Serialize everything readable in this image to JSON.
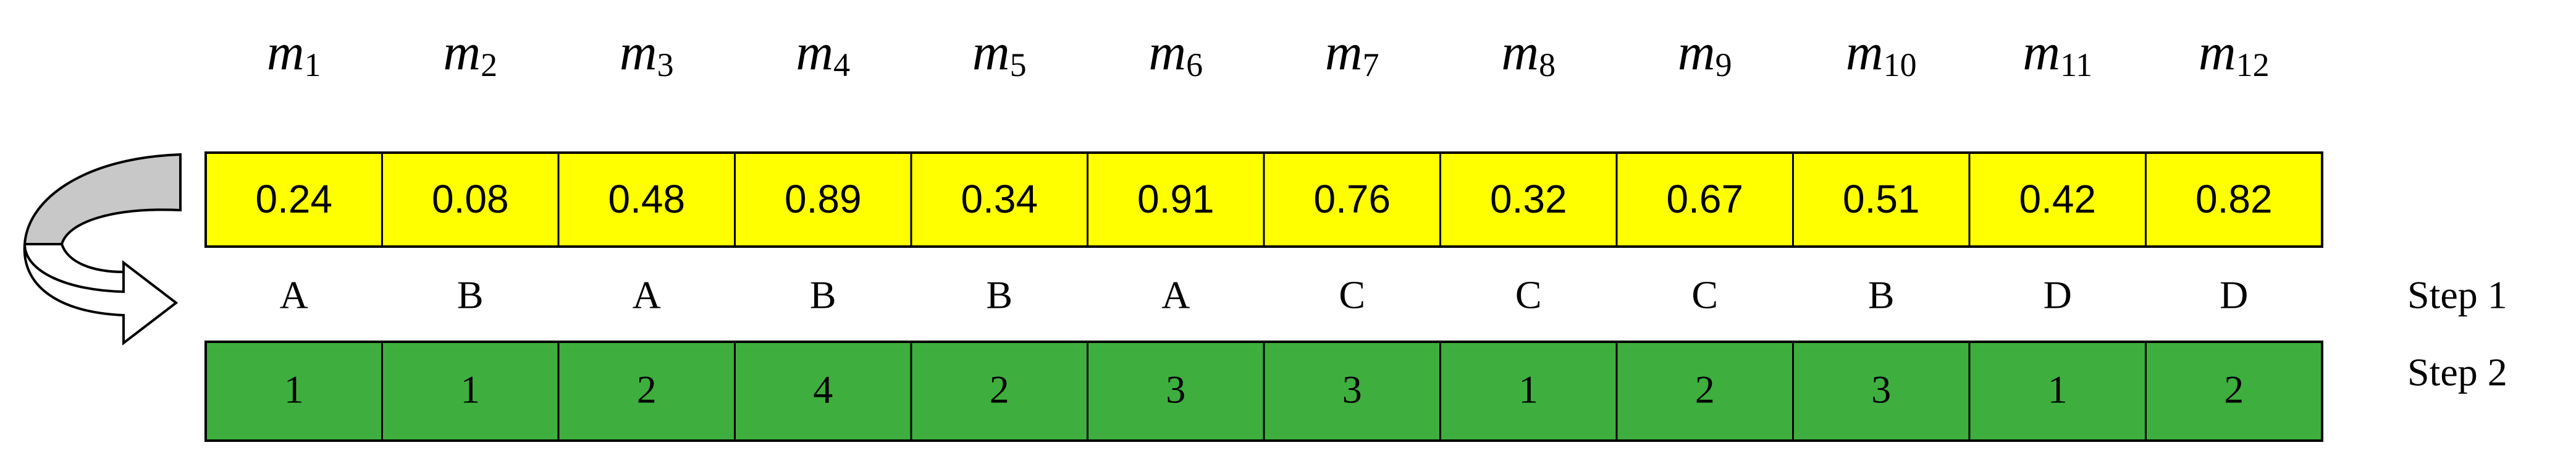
{
  "columns": [
    {
      "symbol": "m",
      "index": "1",
      "value": "0.24",
      "step1": "A",
      "step2": "1"
    },
    {
      "symbol": "m",
      "index": "2",
      "value": "0.08",
      "step1": "B",
      "step2": "1"
    },
    {
      "symbol": "m",
      "index": "3",
      "value": "0.48",
      "step1": "A",
      "step2": "2"
    },
    {
      "symbol": "m",
      "index": "4",
      "value": "0.89",
      "step1": "B",
      "step2": "4"
    },
    {
      "symbol": "m",
      "index": "5",
      "value": "0.34",
      "step1": "B",
      "step2": "2"
    },
    {
      "symbol": "m",
      "index": "6",
      "value": "0.91",
      "step1": "A",
      "step2": "3"
    },
    {
      "symbol": "m",
      "index": "7",
      "value": "0.76",
      "step1": "C",
      "step2": "3"
    },
    {
      "symbol": "m",
      "index": "8",
      "value": "0.32",
      "step1": "C",
      "step2": "1"
    },
    {
      "symbol": "m",
      "index": "9",
      "value": "0.67",
      "step1": "C",
      "step2": "2"
    },
    {
      "symbol": "m",
      "index": "10",
      "value": "0.51",
      "step1": "B",
      "step2": "3"
    },
    {
      "symbol": "m",
      "index": "11",
      "value": "0.42",
      "step1": "D",
      "step2": "1"
    },
    {
      "symbol": "m",
      "index": "12",
      "value": "0.82",
      "step1": "D",
      "step2": "2"
    }
  ],
  "step_labels": [
    "Step 1",
    "Step 2"
  ]
}
